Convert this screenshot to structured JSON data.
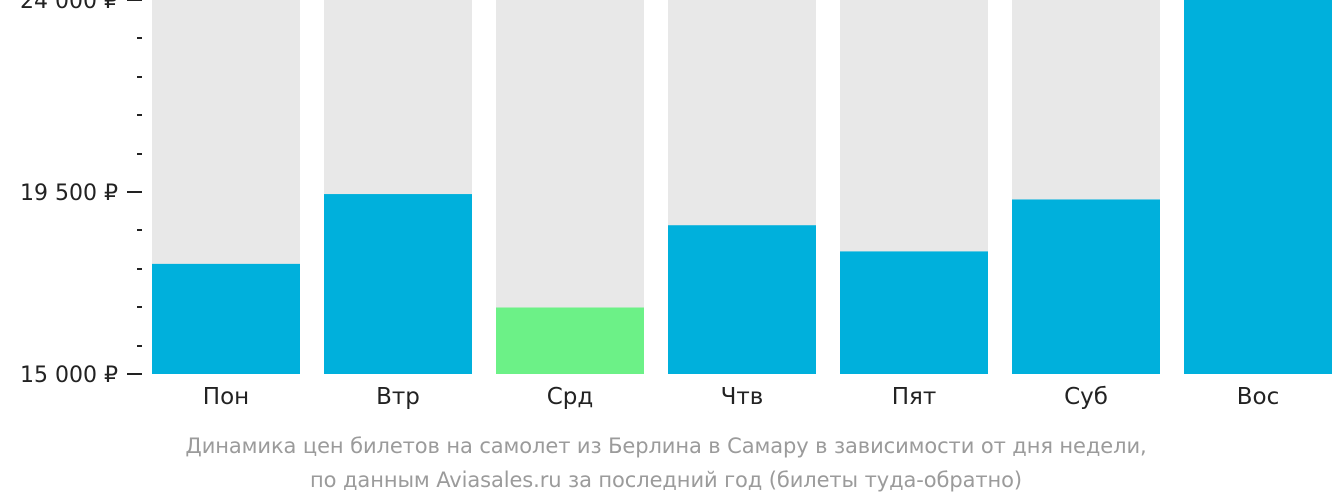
{
  "chart_data": {
    "type": "bar",
    "categories": [
      "Пон",
      "Втр",
      "Срд",
      "Чтв",
      "Пят",
      "Суб",
      "Вос"
    ],
    "values": [
      17650,
      19330,
      16600,
      18580,
      17950,
      19200,
      24000
    ],
    "ylim": [
      15000,
      24000
    ],
    "y_tick_labels": [
      {
        "value": 24000,
        "label": "24 000 ₽"
      },
      {
        "value": 19500,
        "label": "19 500 ₽"
      },
      {
        "value": 15000,
        "label": "15 000 ₽"
      }
    ],
    "y_minor_step": 900,
    "caption": [
      "Динамика цен билетов на самолет из Берлина в Самару в зависимости от дня недели,",
      "по данным Aviasales.ru за последний год (билеты туда-обратно)"
    ],
    "colors": {
      "bar": "#00b0dc",
      "lowest_bar": "#6cf187",
      "track": "#e8e8e8",
      "axis_text": "#222222",
      "caption_text": "#9b9b9b"
    },
    "grid": false,
    "legend": "none"
  }
}
